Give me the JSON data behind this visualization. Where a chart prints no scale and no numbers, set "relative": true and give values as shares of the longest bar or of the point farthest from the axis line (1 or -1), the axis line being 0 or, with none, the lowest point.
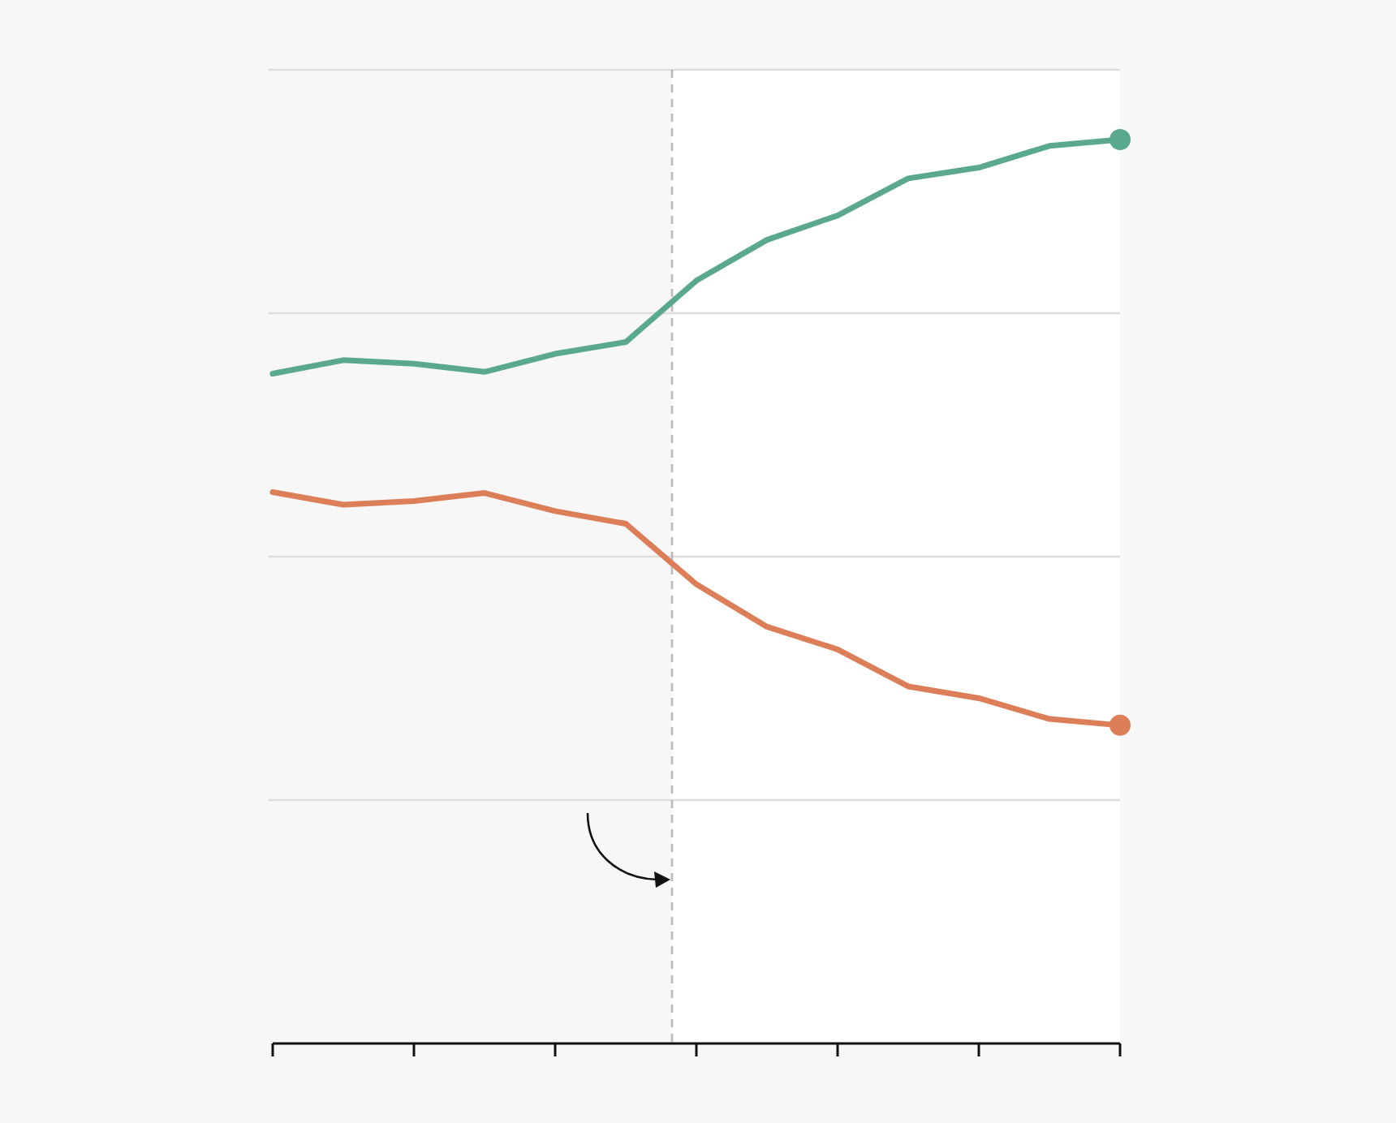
{
  "chart_data": {
    "type": "line",
    "relative": true,
    "categories": [
      null,
      null,
      null,
      null,
      null,
      null,
      null,
      null,
      null,
      null,
      null,
      null,
      null
    ],
    "grid": "y",
    "series": [
      {
        "color": "#5aa88f",
        "values": [
          0.741,
          0.756,
          0.752,
          0.743,
          0.763,
          0.776,
          0.844,
          0.889,
          0.916,
          0.957,
          0.969,
          0.993,
          1
        ]
      },
      {
        "color": "#dc7f59",
        "values": [
          0.61,
          0.596,
          0.6,
          0.609,
          0.589,
          0.575,
          0.508,
          0.461,
          0.436,
          0.395,
          0.382,
          0.359,
          0.352
        ]
      }
    ]
  }
}
